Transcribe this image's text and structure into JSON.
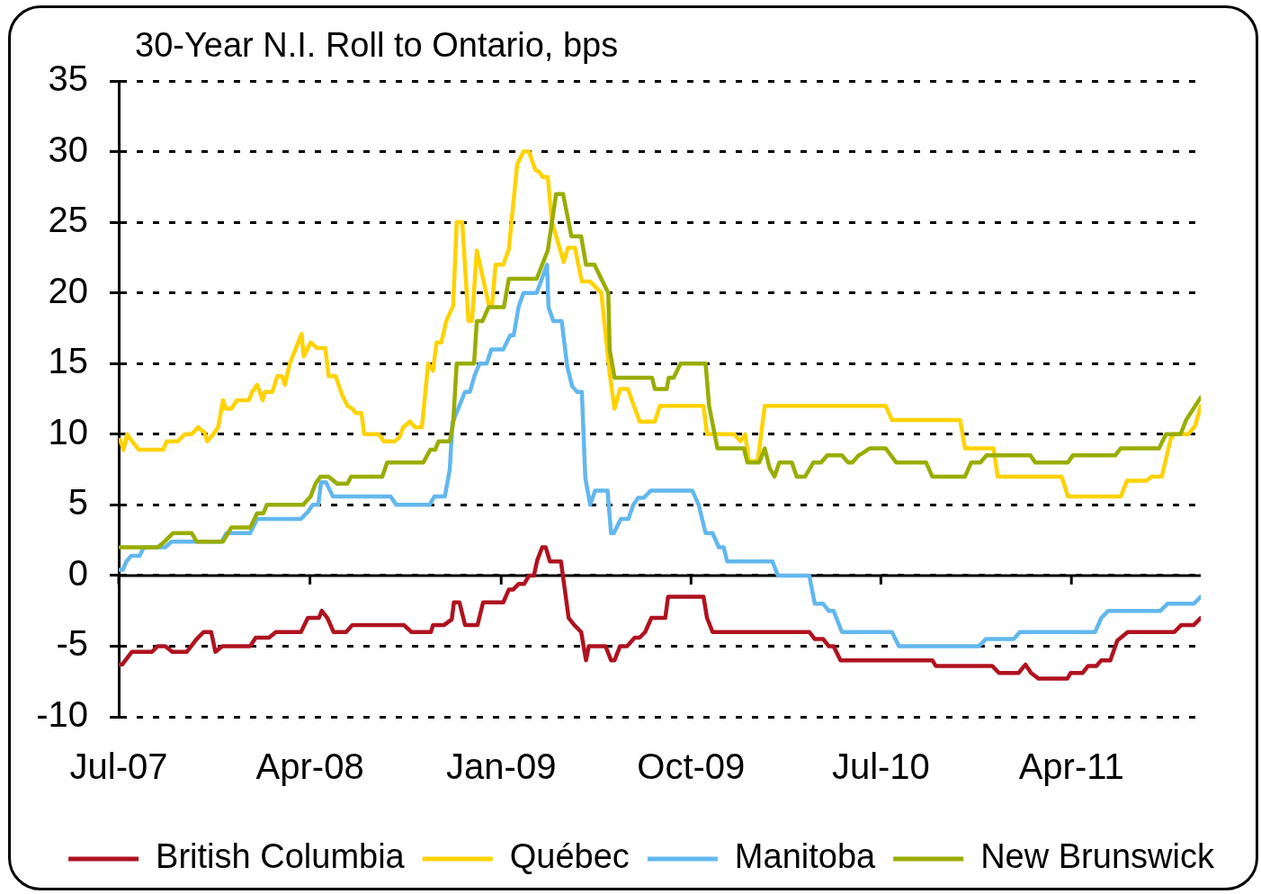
{
  "chart_data": {
    "type": "line",
    "title": "30-Year N.I. Roll to Ontario, bps",
    "xlim": [
      "2007-07-01",
      "2011-10-04"
    ],
    "xticks": [
      {
        "value": "2007-07-01",
        "label": "Jul-07"
      },
      {
        "value": "2008-04-01",
        "label": "Apr-08"
      },
      {
        "value": "2009-01-01",
        "label": "Jan-09"
      },
      {
        "value": "2009-10-01",
        "label": "Oct-09"
      },
      {
        "value": "2010-07-01",
        "label": "Jul-10"
      },
      {
        "value": "2011-04-01",
        "label": "Apr-11"
      }
    ],
    "ylim": [
      -10,
      35
    ],
    "yticks": [
      -10,
      -5,
      0,
      5,
      10,
      15,
      20,
      25,
      30,
      35
    ],
    "grid": "y",
    "legend": "bottom",
    "marker": "none",
    "line_style": "solid",
    "series": [
      {
        "name": "British Columbia",
        "color": "#b0121f",
        "x": [
          "2007-07-01",
          "2007-07-06",
          "2007-07-20",
          "2007-08-18",
          "2007-08-26",
          "2007-09-06",
          "2007-09-16",
          "2007-10-07",
          "2007-10-21",
          "2007-10-31",
          "2007-11-11",
          "2007-11-17",
          "2007-11-27",
          "2008-01-06",
          "2008-01-14",
          "2008-02-02",
          "2008-02-12",
          "2008-03-19",
          "2008-03-29",
          "2008-04-14",
          "2008-04-18",
          "2008-04-26",
          "2008-05-05",
          "2008-05-23",
          "2008-06-01",
          "2008-08-14",
          "2008-08-25",
          "2008-09-22",
          "2008-09-25",
          "2008-10-11",
          "2008-10-22",
          "2008-10-25",
          "2008-11-02",
          "2008-11-10",
          "2008-11-28",
          "2008-12-06",
          "2009-01-04",
          "2009-01-12",
          "2009-01-18",
          "2009-01-26",
          "2009-02-03",
          "2009-02-10",
          "2009-02-17",
          "2009-02-22",
          "2009-03-01",
          "2009-03-06",
          "2009-03-12",
          "2009-03-28",
          "2009-04-08",
          "2009-04-16",
          "2009-04-26",
          "2009-05-03",
          "2009-05-07",
          "2009-05-31",
          "2009-06-08",
          "2009-06-13",
          "2009-06-21",
          "2009-07-01",
          "2009-07-12",
          "2009-07-19",
          "2009-07-27",
          "2009-08-05",
          "2009-08-25",
          "2009-08-29",
          "2009-10-19",
          "2009-10-24",
          "2009-11-01",
          "2010-03-20",
          "2010-03-28",
          "2010-04-09",
          "2010-04-17",
          "2010-04-24",
          "2010-05-04",
          "2010-09-13",
          "2010-09-18",
          "2010-12-08",
          "2010-12-18",
          "2011-01-15",
          "2011-01-25",
          "2011-02-02",
          "2011-02-13",
          "2011-03-26",
          "2011-03-31",
          "2011-04-17",
          "2011-04-25",
          "2011-05-07",
          "2011-05-14",
          "2011-05-27",
          "2011-06-06",
          "2011-06-21",
          "2011-08-27",
          "2011-09-06",
          "2011-09-24",
          "2011-10-04"
        ],
        "values": [
          -6.3,
          -6.3,
          -5.4,
          -5.4,
          -5.0,
          -5.0,
          -5.4,
          -5.4,
          -4.5,
          -4.0,
          -4.0,
          -5.4,
          -5.0,
          -5.0,
          -4.4,
          -4.4,
          -4.0,
          -4.0,
          -3.0,
          -3.0,
          -2.5,
          -3.0,
          -4.0,
          -4.0,
          -3.5,
          -3.5,
          -4.0,
          -4.0,
          -3.5,
          -3.5,
          -3.1,
          -1.9,
          -1.9,
          -3.5,
          -3.5,
          -1.9,
          -1.9,
          -1.0,
          -1.0,
          -0.6,
          -0.6,
          0.0,
          0.0,
          1.1,
          2.0,
          2.0,
          1.0,
          1.0,
          -3.0,
          -3.5,
          -4.0,
          -6.0,
          -5.0,
          -5.0,
          -6.0,
          -6.0,
          -5.0,
          -5.0,
          -4.4,
          -4.4,
          -4.0,
          -3.0,
          -3.0,
          -1.5,
          -1.5,
          -3.0,
          -4.0,
          -4.0,
          -4.5,
          -4.5,
          -5.0,
          -5.0,
          -6.0,
          -6.0,
          -6.4,
          -6.4,
          -6.9,
          -6.9,
          -6.3,
          -6.9,
          -7.3,
          -7.3,
          -6.9,
          -6.9,
          -6.4,
          -6.4,
          -6.0,
          -6.0,
          -4.6,
          -4.0,
          -4.0,
          -3.5,
          -3.5,
          -3.0
        ]
      },
      {
        "name": "Québec",
        "color": "#ffd200",
        "x": [
          "2007-07-03",
          "2007-07-08",
          "2007-07-13",
          "2007-07-17",
          "2007-07-30",
          "2007-09-03",
          "2007-09-08",
          "2007-09-24",
          "2007-10-04",
          "2007-10-14",
          "2007-10-23",
          "2007-11-02",
          "2007-11-05",
          "2007-11-14",
          "2007-11-21",
          "2007-11-28",
          "2007-12-02",
          "2007-12-10",
          "2007-12-18",
          "2008-01-04",
          "2008-01-09",
          "2008-01-16",
          "2008-01-24",
          "2008-01-27",
          "2008-02-07",
          "2008-02-14",
          "2008-02-21",
          "2008-02-25",
          "2008-03-03",
          "2008-03-20",
          "2008-03-23",
          "2008-04-02",
          "2008-04-11",
          "2008-04-23",
          "2008-04-28",
          "2008-05-08",
          "2008-05-17",
          "2008-05-25",
          "2008-06-01",
          "2008-06-06",
          "2008-06-14",
          "2008-06-18",
          "2008-07-09",
          "2008-07-16",
          "2008-08-01",
          "2008-08-08",
          "2008-08-13",
          "2008-08-23",
          "2008-08-30",
          "2008-09-09",
          "2008-09-18",
          "2008-09-25",
          "2008-09-30",
          "2008-10-07",
          "2008-10-14",
          "2008-10-24",
          "2008-10-29",
          "2008-11-06",
          "2008-11-15",
          "2008-11-20",
          "2008-11-27",
          "2008-12-14",
          "2008-12-19",
          "2008-12-24",
          "2009-01-04",
          "2009-01-12",
          "2009-01-24",
          "2009-02-02",
          "2009-02-10",
          "2009-02-19",
          "2009-02-24",
          "2009-03-02",
          "2009-03-09",
          "2009-03-15",
          "2009-04-01",
          "2009-04-07",
          "2009-04-17",
          "2009-04-27",
          "2009-05-09",
          "2009-05-25",
          "2009-06-06",
          "2009-06-13",
          "2009-06-21",
          "2009-07-02",
          "2009-07-19",
          "2009-08-10",
          "2009-08-17",
          "2009-10-19",
          "2009-10-24",
          "2009-12-02",
          "2009-12-11",
          "2009-12-18",
          "2009-12-23",
          "2010-01-05",
          "2010-01-15",
          "2010-07-08",
          "2010-07-17",
          "2010-10-23",
          "2010-10-30",
          "2010-12-10",
          "2010-12-16",
          "2011-03-18",
          "2011-03-27",
          "2011-06-11",
          "2011-06-20",
          "2011-07-18",
          "2011-07-25",
          "2011-08-09",
          "2011-08-22",
          "2011-08-27",
          "2011-09-16",
          "2011-09-26",
          "2011-10-04"
        ],
        "values": [
          9.6,
          8.9,
          10.0,
          9.7,
          8.9,
          8.9,
          9.5,
          9.5,
          10.0,
          10.0,
          10.5,
          10.1,
          9.5,
          10.0,
          10.5,
          12.4,
          11.8,
          11.8,
          12.4,
          12.4,
          13.0,
          13.5,
          12.4,
          13.0,
          13.0,
          14.1,
          14.1,
          13.5,
          15.0,
          17.1,
          15.5,
          16.5,
          16.1,
          16.1,
          14.1,
          14.1,
          12.8,
          12.0,
          11.8,
          11.5,
          11.5,
          10.0,
          10.0,
          9.5,
          9.5,
          9.8,
          10.5,
          10.9,
          10.5,
          10.5,
          15.0,
          14.5,
          16.5,
          16.5,
          18.0,
          19.1,
          25.0,
          25.0,
          18.0,
          18.0,
          23.0,
          19.2,
          19.2,
          22.0,
          22.0,
          23.1,
          29.1,
          30.0,
          30.0,
          28.7,
          28.6,
          28.2,
          28.2,
          25.0,
          22.2,
          23.2,
          23.2,
          20.8,
          20.8,
          20.0,
          14.3,
          11.8,
          13.2,
          13.2,
          10.9,
          10.9,
          12.0,
          12.0,
          10.0,
          10.0,
          9.5,
          10.0,
          8.1,
          8.1,
          12.0,
          12.0,
          11.0,
          11.0,
          9.0,
          9.0,
          7.0,
          7.0,
          5.6,
          5.6,
          6.7,
          6.7,
          7.0,
          7.0,
          9.7,
          10.0,
          10.0,
          10.6,
          12.0
        ]
      },
      {
        "name": "Manitoba",
        "color": "#63b7ee",
        "x": [
          "2007-07-02",
          "2007-07-07",
          "2007-07-12",
          "2007-07-19",
          "2007-07-31",
          "2007-08-05",
          "2007-08-08",
          "2007-09-06",
          "2007-09-15",
          "2007-11-26",
          "2007-12-03",
          "2008-01-06",
          "2008-01-16",
          "2008-03-19",
          "2008-03-29",
          "2008-04-05",
          "2008-04-13",
          "2008-04-17",
          "2008-04-24",
          "2008-05-04",
          "2008-07-26",
          "2008-08-03",
          "2008-09-20",
          "2008-09-27",
          "2008-10-12",
          "2008-10-19",
          "2008-10-23",
          "2008-11-10",
          "2008-11-17",
          "2008-11-24",
          "2008-12-01",
          "2008-12-11",
          "2008-12-18",
          "2009-01-04",
          "2009-01-14",
          "2009-01-19",
          "2009-01-26",
          "2009-02-02",
          "2009-02-21",
          "2009-03-08",
          "2009-03-10",
          "2009-03-17",
          "2009-03-29",
          "2009-04-06",
          "2009-04-13",
          "2009-04-20",
          "2009-04-27",
          "2009-05-02",
          "2009-05-09",
          "2009-05-16",
          "2009-06-03",
          "2009-06-08",
          "2009-06-12",
          "2009-06-22",
          "2009-07-03",
          "2009-07-10",
          "2009-07-17",
          "2009-07-25",
          "2009-08-04",
          "2009-10-03",
          "2009-10-12",
          "2009-10-22",
          "2009-11-01",
          "2009-11-10",
          "2009-11-17",
          "2009-11-22",
          "2010-01-26",
          "2010-02-03",
          "2010-03-20",
          "2010-03-28",
          "2010-04-09",
          "2010-04-17",
          "2010-04-24",
          "2010-05-06",
          "2010-07-17",
          "2010-07-27",
          "2010-11-19",
          "2010-11-29",
          "2011-01-08",
          "2011-01-17",
          "2011-05-05",
          "2011-05-14",
          "2011-05-24",
          "2011-08-07",
          "2011-08-17",
          "2011-09-24",
          "2011-10-04"
        ],
        "values": [
          0.4,
          0.4,
          1.0,
          1.4,
          1.4,
          1.9,
          2.0,
          2.0,
          2.4,
          2.4,
          3.0,
          3.0,
          4.0,
          4.0,
          4.5,
          5.0,
          5.0,
          6.6,
          6.6,
          5.6,
          5.6,
          5.0,
          5.0,
          5.6,
          5.6,
          7.5,
          10.8,
          13.0,
          13.0,
          14.2,
          15.0,
          15.0,
          16.0,
          16.0,
          17.0,
          17.0,
          19.0,
          20.0,
          20.0,
          22.0,
          19.0,
          18.0,
          18.0,
          14.8,
          13.4,
          13.0,
          13.0,
          6.9,
          5.0,
          6.0,
          6.0,
          3.0,
          3.0,
          4.0,
          4.0,
          5.0,
          5.5,
          5.5,
          6.0,
          6.0,
          5.0,
          3.0,
          3.0,
          2.0,
          2.0,
          1.0,
          1.0,
          0.0,
          0.0,
          -2.0,
          -2.0,
          -2.5,
          -2.5,
          -4.0,
          -4.0,
          -5.0,
          -5.0,
          -4.5,
          -4.5,
          -4.0,
          -4.0,
          -3.0,
          -2.5,
          -2.5,
          -2.0,
          -2.0,
          -1.5
        ]
      },
      {
        "name": "New Brunswick",
        "color": "#99ad00",
        "x": [
          "2007-07-03",
          "2007-08-26",
          "2007-09-05",
          "2007-09-17",
          "2007-10-14",
          "2007-10-21",
          "2007-11-28",
          "2007-12-10",
          "2008-01-06",
          "2008-01-16",
          "2008-01-25",
          "2008-01-30",
          "2008-03-22",
          "2008-04-02",
          "2008-04-09",
          "2008-04-16",
          "2008-04-28",
          "2008-05-10",
          "2008-05-25",
          "2008-05-30",
          "2008-07-14",
          "2008-07-21",
          "2008-09-11",
          "2008-09-21",
          "2008-09-28",
          "2008-10-03",
          "2008-10-19",
          "2008-10-24",
          "2008-10-29",
          "2008-11-23",
          "2008-11-27",
          "2008-12-05",
          "2008-12-14",
          "2009-01-05",
          "2009-01-12",
          "2009-02-21",
          "2009-03-09",
          "2009-03-21",
          "2009-03-31",
          "2009-04-12",
          "2009-04-26",
          "2009-05-03",
          "2009-05-15",
          "2009-06-04",
          "2009-06-06",
          "2009-06-13",
          "2009-08-06",
          "2009-08-10",
          "2009-08-27",
          "2009-08-30",
          "2009-09-06",
          "2009-09-16",
          "2009-10-22",
          "2009-10-27",
          "2009-11-08",
          "2009-12-16",
          "2009-12-21",
          "2010-01-07",
          "2010-01-15",
          "2010-01-22",
          "2010-01-29",
          "2010-02-05",
          "2010-02-23",
          "2010-03-02",
          "2010-03-14",
          "2010-03-26",
          "2010-04-06",
          "2010-04-15",
          "2010-05-06",
          "2010-05-15",
          "2010-05-21",
          "2010-05-30",
          "2010-06-06",
          "2010-06-15",
          "2010-07-08",
          "2010-07-23",
          "2010-09-04",
          "2010-09-13",
          "2010-10-30",
          "2010-11-08",
          "2010-11-21",
          "2010-11-30",
          "2011-02-01",
          "2011-02-08",
          "2011-03-27",
          "2011-04-03",
          "2011-06-03",
          "2011-06-11",
          "2011-08-05",
          "2011-08-15",
          "2011-09-05",
          "2011-09-13",
          "2011-09-26",
          "2011-10-04"
        ],
        "values": [
          2.0,
          2.0,
          2.4,
          3.0,
          3.0,
          2.4,
          2.4,
          3.4,
          3.4,
          4.4,
          4.4,
          5.0,
          5.0,
          5.6,
          6.5,
          7.0,
          7.0,
          6.5,
          6.5,
          7.0,
          7.0,
          8.0,
          8.0,
          8.9,
          8.9,
          9.5,
          9.5,
          10.8,
          15.0,
          15.0,
          18.0,
          18.0,
          19.0,
          19.0,
          21.0,
          21.0,
          23.0,
          27.0,
          27.0,
          24.0,
          24.0,
          22.0,
          22.0,
          20.0,
          16.0,
          14.0,
          14.0,
          13.2,
          13.2,
          14.0,
          14.0,
          15.0,
          15.0,
          12.0,
          9.0,
          9.0,
          8.0,
          8.0,
          9.0,
          7.6,
          7.0,
          8.0,
          8.0,
          7.0,
          7.0,
          8.0,
          8.0,
          8.5,
          8.5,
          8.0,
          8.0,
          8.5,
          8.7,
          9.0,
          9.0,
          8.0,
          8.0,
          7.0,
          7.0,
          8.0,
          8.0,
          8.5,
          8.5,
          8.0,
          8.0,
          8.5,
          8.5,
          9.0,
          9.0,
          10.0,
          10.0,
          11.0,
          12.0,
          12.6
        ]
      }
    ]
  }
}
